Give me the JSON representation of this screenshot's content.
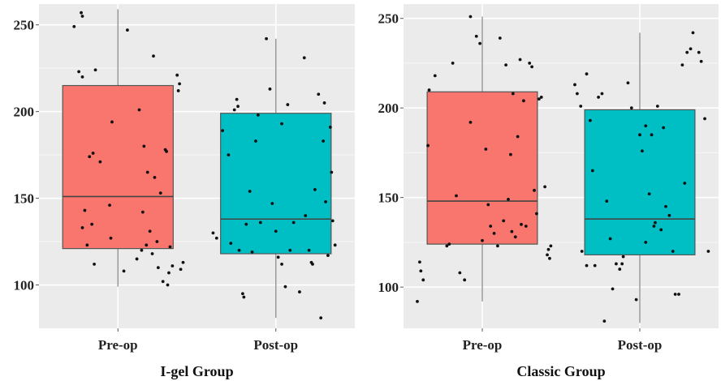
{
  "chart_data": [
    {
      "type": "box",
      "title": "I-gel Group",
      "xlabel": "",
      "ylabel": "",
      "categories": [
        "Pre-op",
        "Post-op"
      ],
      "yticks": [
        100,
        150,
        200,
        250
      ],
      "ylim": [
        75,
        262
      ],
      "grid": true,
      "colors": {
        "Pre-op": "#f8766d",
        "Post-op": "#00bfc4"
      },
      "boxes": [
        {
          "category": "Pre-op",
          "min": 99,
          "q1": 121,
          "median": 151,
          "q3": 215,
          "max": 259
        },
        {
          "category": "Post-op",
          "min": 81,
          "q1": 118,
          "median": 138,
          "q3": 199,
          "max": 242
        }
      ],
      "points": [
        [
          [
            -0.37,
            249
          ],
          [
            -0.31,
            257
          ],
          [
            -0.3,
            255
          ],
          [
            -0.33,
            223
          ],
          [
            -0.3,
            220
          ],
          [
            -0.19,
            224
          ],
          [
            -0.15,
            171
          ],
          [
            -0.24,
            174
          ],
          [
            -0.21,
            176
          ],
          [
            -0.28,
            143
          ],
          [
            -0.3,
            133
          ],
          [
            -0.22,
            135
          ],
          [
            -0.26,
            123
          ],
          [
            -0.2,
            112
          ],
          [
            -0.05,
            194
          ],
          [
            -0.06,
            127
          ],
          [
            -0.07,
            146
          ],
          [
            0.05,
            108
          ],
          [
            0.08,
            247
          ],
          [
            0.16,
            115
          ],
          [
            0.18,
            201
          ],
          [
            0.2,
            120
          ],
          [
            0.21,
            142
          ],
          [
            0.22,
            180
          ],
          [
            0.24,
            123
          ],
          [
            0.25,
            165
          ],
          [
            0.27,
            131
          ],
          [
            0.29,
            118
          ],
          [
            0.3,
            232
          ],
          [
            0.31,
            162
          ],
          [
            0.33,
            125
          ],
          [
            0.34,
            110
          ],
          [
            0.36,
            153
          ],
          [
            0.38,
            102
          ],
          [
            0.4,
            178
          ],
          [
            0.41,
            177
          ],
          [
            0.42,
            100
          ],
          [
            0.43,
            107
          ],
          [
            0.46,
            111
          ],
          [
            0.5,
            221
          ],
          [
            0.51,
            212
          ],
          [
            0.52,
            216
          ],
          [
            0.55,
            113
          ],
          [
            0.53,
            109
          ],
          [
            0.44,
            122
          ]
        ],
        [
          [
            -0.53,
            130
          ],
          [
            -0.5,
            127
          ],
          [
            -0.45,
            189
          ],
          [
            -0.4,
            175
          ],
          [
            -0.38,
            124
          ],
          [
            -0.33,
            207
          ],
          [
            -0.32,
            203
          ],
          [
            -0.31,
            120
          ],
          [
            -0.28,
            95
          ],
          [
            -0.27,
            93
          ],
          [
            -0.25,
            135
          ],
          [
            -0.22,
            154
          ],
          [
            -0.17,
            183
          ],
          [
            -0.15,
            198
          ],
          [
            -0.13,
            136
          ],
          [
            -0.08,
            242
          ],
          [
            -0.05,
            213
          ],
          [
            -0.03,
            147
          ],
          [
            0.0,
            131
          ],
          [
            0.02,
            116
          ],
          [
            0.05,
            112
          ],
          [
            0.08,
            99
          ],
          [
            0.15,
            136
          ],
          [
            0.2,
            96
          ],
          [
            0.24,
            231
          ],
          [
            0.25,
            140
          ],
          [
            0.28,
            120
          ],
          [
            0.3,
            113
          ],
          [
            0.31,
            112
          ],
          [
            0.33,
            155
          ],
          [
            0.36,
            210
          ],
          [
            0.38,
            81
          ],
          [
            0.4,
            183
          ],
          [
            0.41,
            205
          ],
          [
            0.42,
            148
          ],
          [
            0.44,
            117
          ],
          [
            0.46,
            191
          ],
          [
            0.47,
            165
          ],
          [
            0.48,
            137
          ],
          [
            0.5,
            123
          ],
          [
            0.05,
            193
          ],
          [
            0.1,
            204
          ],
          [
            -0.2,
            119
          ],
          [
            0.12,
            120
          ],
          [
            -0.35,
            201
          ]
        ]
      ]
    },
    {
      "type": "box",
      "title": "Classic Group",
      "xlabel": "",
      "ylabel": "",
      "categories": [
        "Pre-op",
        "Post-op"
      ],
      "yticks": [
        100,
        150,
        200,
        250
      ],
      "ylim": [
        77,
        258
      ],
      "grid": true,
      "colors": {
        "Pre-op": "#f8766d",
        "Post-op": "#00bfc4"
      },
      "boxes": [
        {
          "category": "Pre-op",
          "min": 92,
          "q1": 124,
          "median": 148,
          "q3": 209,
          "max": 251
        },
        {
          "category": "Post-op",
          "min": 80,
          "q1": 118,
          "median": 138,
          "q3": 199,
          "max": 242
        }
      ],
      "points": [
        [
          [
            -0.55,
            92
          ],
          [
            -0.53,
            114
          ],
          [
            -0.52,
            109
          ],
          [
            -0.5,
            104
          ],
          [
            -0.46,
            179
          ],
          [
            -0.45,
            210
          ],
          [
            -0.4,
            218
          ],
          [
            -0.3,
            123
          ],
          [
            -0.28,
            124
          ],
          [
            -0.25,
            225
          ],
          [
            -0.22,
            151
          ],
          [
            -0.19,
            108
          ],
          [
            -0.15,
            104
          ],
          [
            -0.1,
            192
          ],
          [
            -0.05,
            240
          ],
          [
            -0.02,
            236
          ],
          [
            0.0,
            126
          ],
          [
            0.03,
            177
          ],
          [
            0.05,
            146
          ],
          [
            0.07,
            134
          ],
          [
            0.1,
            130
          ],
          [
            0.13,
            123
          ],
          [
            0.15,
            239
          ],
          [
            0.18,
            137
          ],
          [
            0.2,
            224
          ],
          [
            0.22,
            149
          ],
          [
            0.25,
            131
          ],
          [
            0.28,
            128
          ],
          [
            0.3,
            184
          ],
          [
            0.33,
            135
          ],
          [
            0.35,
            204
          ],
          [
            0.37,
            134
          ],
          [
            0.4,
            225
          ],
          [
            0.42,
            223
          ],
          [
            0.44,
            154
          ],
          [
            0.46,
            141
          ],
          [
            0.48,
            205
          ],
          [
            0.5,
            206
          ],
          [
            0.53,
            156
          ],
          [
            0.55,
            118
          ],
          [
            0.56,
            121
          ],
          [
            0.57,
            116
          ],
          [
            0.58,
            123
          ],
          [
            -0.1,
            251
          ],
          [
            0.26,
            208
          ],
          [
            0.32,
            227
          ],
          [
            0.24,
            174
          ]
        ],
        [
          [
            -0.55,
            213
          ],
          [
            -0.53,
            208
          ],
          [
            -0.5,
            201
          ],
          [
            -0.49,
            120
          ],
          [
            -0.45,
            112
          ],
          [
            -0.42,
            193
          ],
          [
            -0.4,
            165
          ],
          [
            -0.38,
            112
          ],
          [
            -0.35,
            206
          ],
          [
            -0.32,
            208
          ],
          [
            -0.3,
            81
          ],
          [
            -0.28,
            148
          ],
          [
            -0.25,
            127
          ],
          [
            -0.23,
            99
          ],
          [
            -0.2,
            113
          ],
          [
            -0.17,
            110
          ],
          [
            -0.14,
            117
          ],
          [
            -0.1,
            214
          ],
          [
            -0.07,
            200
          ],
          [
            -0.03,
            93
          ],
          [
            0.0,
            185
          ],
          [
            0.02,
            176
          ],
          [
            0.05,
            190
          ],
          [
            0.08,
            152
          ],
          [
            0.1,
            185
          ],
          [
            0.13,
            136
          ],
          [
            0.15,
            201
          ],
          [
            0.18,
            132
          ],
          [
            0.2,
            189
          ],
          [
            0.22,
            145
          ],
          [
            0.25,
            140
          ],
          [
            0.28,
            120
          ],
          [
            0.3,
            96
          ],
          [
            0.33,
            96
          ],
          [
            0.36,
            224
          ],
          [
            0.38,
            158
          ],
          [
            0.4,
            231
          ],
          [
            0.43,
            233
          ],
          [
            0.45,
            242
          ],
          [
            0.5,
            231
          ],
          [
            0.52,
            226
          ],
          [
            0.55,
            194
          ],
          [
            0.58,
            120
          ],
          [
            -0.45,
            219
          ],
          [
            0.05,
            125
          ],
          [
            0.12,
            134
          ],
          [
            -0.15,
            113
          ]
        ]
      ]
    }
  ]
}
